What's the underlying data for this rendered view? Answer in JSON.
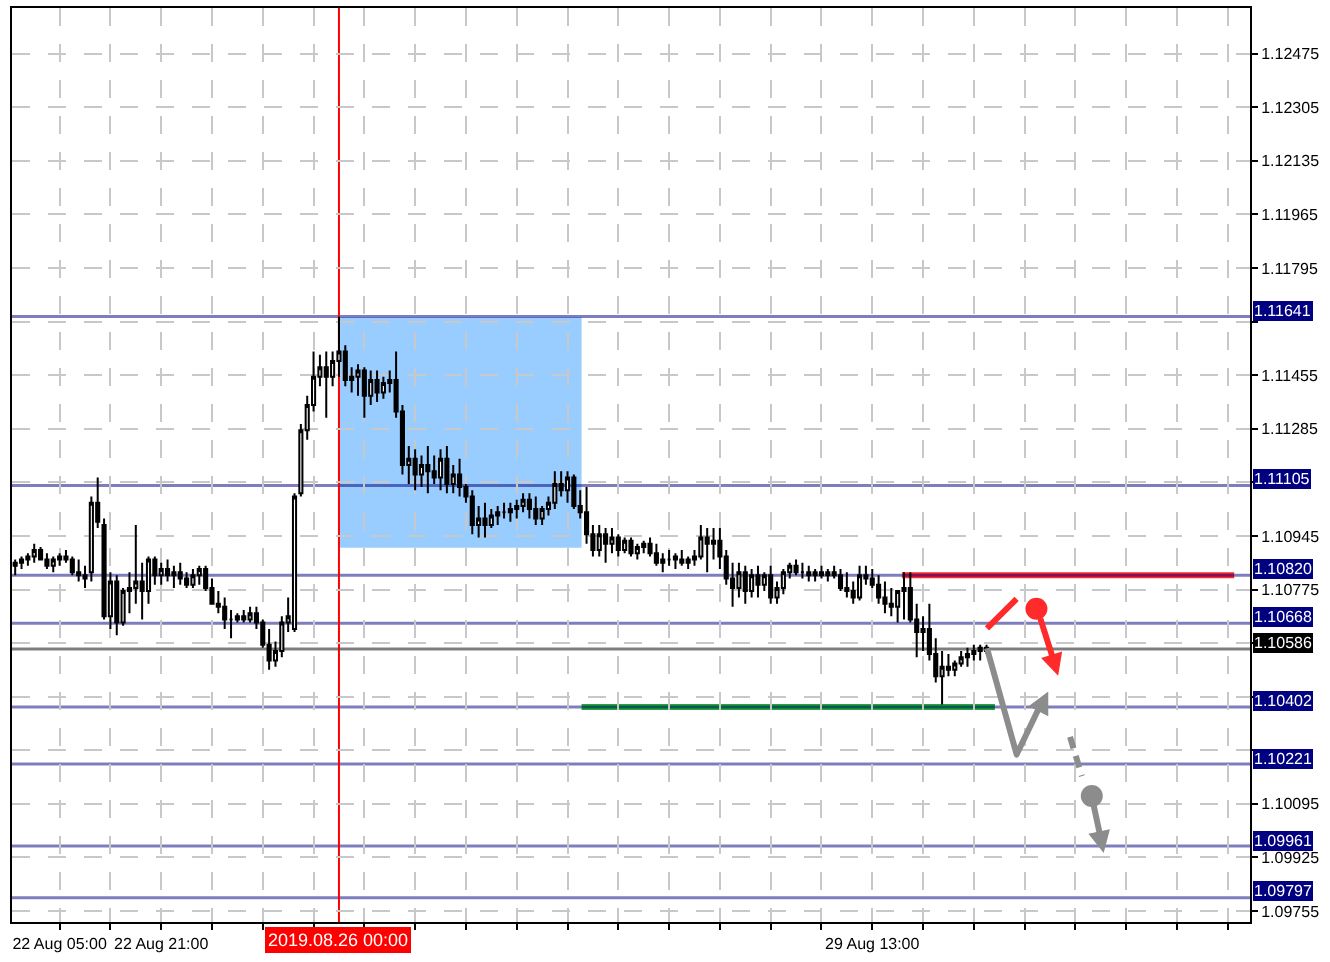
{
  "chart_data": {
    "type": "candlestick",
    "categories": [
      null,
      null,
      null,
      null,
      null,
      null,
      null,
      "22 Aug 05:00",
      null,
      null,
      null,
      null,
      null,
      null,
      null,
      null,
      null,
      null,
      null,
      null,
      null,
      null,
      null,
      "22 Aug 21:00",
      null,
      null,
      null,
      null,
      null,
      null,
      null,
      null,
      null,
      null,
      null,
      null,
      null,
      null,
      null,
      null,
      null,
      null,
      null,
      null,
      null,
      null,
      null,
      null,
      null,
      null,
      null,
      "2019.08.26 00:00",
      null,
      null,
      null,
      null,
      null,
      null,
      null,
      null,
      null,
      null,
      null,
      null,
      null,
      null,
      null,
      null,
      null,
      null,
      null,
      null,
      null,
      null,
      null,
      null,
      null,
      null,
      null,
      null,
      null,
      null,
      null,
      null,
      null,
      null,
      null,
      null,
      null,
      null,
      null,
      null,
      null,
      null,
      null,
      null,
      null,
      null,
      null,
      null,
      null,
      null,
      null,
      null,
      null,
      null,
      null,
      null,
      null,
      null,
      null,
      null,
      null,
      null,
      null,
      null,
      null,
      null,
      null,
      null,
      null,
      null,
      null,
      null,
      null,
      null,
      null,
      null,
      null,
      null,
      null,
      null,
      null,
      null,
      null,
      "29 Aug 13:00",
      null,
      null,
      null,
      null,
      null,
      null,
      null,
      null,
      null,
      null,
      null,
      null,
      null,
      null,
      null,
      null,
      null,
      null,
      null,
      null,
      null,
      null,
      null,
      null,
      null,
      null,
      null,
      null,
      null,
      null,
      null,
      null,
      null,
      null,
      null,
      null,
      null,
      null,
      null,
      null,
      null,
      null,
      null,
      null,
      null,
      null,
      null,
      null,
      null,
      null,
      null,
      null,
      null,
      null,
      null,
      null,
      null,
      null,
      null
    ],
    "ohlc": [
      [
        1.1085,
        1.1087,
        1.1082,
        1.1086
      ],
      [
        1.1086,
        1.1088,
        1.1084,
        1.1087
      ],
      [
        1.1087,
        1.1089,
        1.1085,
        1.1088
      ],
      [
        1.1088,
        1.1092,
        1.1086,
        1.109
      ],
      [
        1.109,
        1.1091,
        1.1087,
        1.1087
      ],
      [
        1.1087,
        1.1089,
        1.1084,
        1.1085
      ],
      [
        1.1085,
        1.1088,
        1.1083,
        1.1087
      ],
      [
        1.1087,
        1.1089,
        1.1085,
        1.1088
      ],
      [
        1.1088,
        1.109,
        1.1086,
        1.1087
      ],
      [
        1.1087,
        1.1088,
        1.1082,
        1.1083
      ],
      [
        1.1083,
        1.1087,
        1.108,
        1.1082
      ],
      [
        1.1082,
        1.1085,
        1.1078,
        1.1081
      ],
      [
        1.1083,
        1.1107,
        1.108,
        1.1105
      ],
      [
        1.1105,
        1.1113,
        1.1097,
        1.1099
      ],
      [
        1.1098,
        1.11,
        1.1068,
        1.1069
      ],
      [
        1.1069,
        1.1083,
        1.1065,
        1.108
      ],
      [
        1.108,
        1.1082,
        1.1063,
        1.1067
      ],
      [
        1.1067,
        1.1078,
        1.1066,
        1.1077
      ],
      [
        1.1077,
        1.1083,
        1.107,
        1.1078
      ],
      [
        1.1078,
        1.1098,
        1.1073,
        1.108
      ],
      [
        1.108,
        1.1086,
        1.1068,
        1.1077
      ],
      [
        1.1077,
        1.1088,
        1.1073,
        1.1087
      ],
      [
        1.1087,
        1.1088,
        1.1079,
        1.1082
      ],
      [
        1.1082,
        1.1086,
        1.1079,
        1.1084
      ],
      [
        1.1084,
        1.1087,
        1.108,
        1.1082
      ],
      [
        1.1082,
        1.1085,
        1.1078,
        1.1083
      ],
      [
        1.1083,
        1.1086,
        1.1079,
        1.1081
      ],
      [
        1.1081,
        1.1083,
        1.1078,
        1.1079
      ],
      [
        1.1079,
        1.1084,
        1.1078,
        1.1082
      ],
      [
        1.1082,
        1.1085,
        1.1079,
        1.1084
      ],
      [
        1.1084,
        1.1085,
        1.1077,
        1.1078
      ],
      [
        1.1078,
        1.1081,
        1.1073,
        1.1073
      ],
      [
        1.1073,
        1.1077,
        1.107,
        1.1072
      ],
      [
        1.1072,
        1.1075,
        1.1065,
        1.1068
      ],
      [
        1.1068,
        1.1071,
        1.1062,
        1.1068
      ],
      [
        1.1068,
        1.107,
        1.1067,
        1.1069
      ],
      [
        1.1069,
        1.1071,
        1.1067,
        1.1068
      ],
      [
        1.1068,
        1.1072,
        1.1067,
        1.107
      ],
      [
        1.107,
        1.1072,
        1.1065,
        1.1067
      ],
      [
        1.1067,
        1.1068,
        1.1059,
        1.106
      ],
      [
        1.106,
        1.1065,
        1.1052,
        1.1055
      ],
      [
        1.1055,
        1.1061,
        1.1053,
        1.1058
      ],
      [
        1.1058,
        1.1069,
        1.1056,
        1.1067
      ],
      [
        1.1067,
        1.1075,
        1.1064,
        1.1069
      ],
      [
        1.1065,
        1.1108,
        1.1064,
        1.1107
      ],
      [
        1.1108,
        1.113,
        1.1107,
        1.1128
      ],
      [
        1.1128,
        1.1139,
        1.1125,
        1.1136
      ],
      [
        1.1136,
        1.1153,
        1.1134,
        1.1145
      ],
      [
        1.1145,
        1.1152,
        1.1142,
        1.1148
      ],
      [
        1.1148,
        1.1153,
        1.1132,
        1.1145
      ],
      [
        1.1145,
        1.1153,
        1.1142,
        1.115
      ],
      [
        1.115,
        1.1164,
        1.1145,
        1.1153
      ],
      [
        1.1153,
        1.1155,
        1.1142,
        1.1144
      ],
      [
        1.1144,
        1.1148,
        1.114,
        1.1145
      ],
      [
        1.1145,
        1.1149,
        1.1139,
        1.1147
      ],
      [
        1.1147,
        1.1148,
        1.1132,
        1.1139
      ],
      [
        1.1139,
        1.1147,
        1.1136,
        1.1144
      ],
      [
        1.1144,
        1.1147,
        1.1137,
        1.114
      ],
      [
        1.114,
        1.1145,
        1.1138,
        1.1143
      ],
      [
        1.1143,
        1.1147,
        1.114,
        1.1144
      ],
      [
        1.1144,
        1.1153,
        1.1132,
        1.1134
      ],
      [
        1.1134,
        1.1136,
        1.1114,
        1.1117
      ],
      [
        1.1117,
        1.1123,
        1.1111,
        1.1119
      ],
      [
        1.1119,
        1.1122,
        1.1109,
        1.1114
      ],
      [
        1.1114,
        1.112,
        1.111,
        1.1117
      ],
      [
        1.1117,
        1.1123,
        1.1108,
        1.1115
      ],
      [
        1.1115,
        1.112,
        1.1111,
        1.1113
      ],
      [
        1.1113,
        1.1122,
        1.1109,
        1.1119
      ],
      [
        1.1119,
        1.1123,
        1.1108,
        1.1111
      ],
      [
        1.1111,
        1.1117,
        1.1108,
        1.1114
      ],
      [
        1.1114,
        1.1119,
        1.1107,
        1.111
      ],
      [
        1.111,
        1.1111,
        1.1105,
        1.1107
      ],
      [
        1.1107,
        1.1109,
        1.1095,
        1.1098
      ],
      [
        1.1098,
        1.1104,
        1.1094,
        1.11
      ],
      [
        1.11,
        1.1105,
        1.1094,
        1.1098
      ],
      [
        1.1098,
        1.1103,
        1.1097,
        1.1101
      ],
      [
        1.1101,
        1.1104,
        1.1098,
        1.1102
      ],
      [
        1.1102,
        1.1105,
        1.11,
        1.1102
      ],
      [
        1.1102,
        1.1105,
        1.1099,
        1.1103
      ],
      [
        1.1103,
        1.1106,
        1.11,
        1.1104
      ],
      [
        1.1104,
        1.1108,
        1.1102,
        1.1106
      ],
      [
        1.1106,
        1.1108,
        1.11,
        1.1103
      ],
      [
        1.1103,
        1.1107,
        1.1098,
        1.11
      ],
      [
        1.11,
        1.1104,
        1.1098,
        1.1103
      ],
      [
        1.1103,
        1.1107,
        1.1101,
        1.1105
      ],
      [
        1.1105,
        1.1115,
        1.1103,
        1.1111
      ],
      [
        1.1111,
        1.1115,
        1.1107,
        1.1109
      ],
      [
        1.1109,
        1.1115,
        1.1105,
        1.1113
      ],
      [
        1.1113,
        1.1114,
        1.1103,
        1.1104
      ],
      [
        1.1104,
        1.1109,
        1.11,
        1.1102
      ],
      [
        1.1102,
        1.111,
        1.1092,
        1.1095
      ],
      [
        1.1095,
        1.1098,
        1.1088,
        1.109
      ],
      [
        1.109,
        1.1098,
        1.1088,
        1.1095
      ],
      [
        1.1095,
        1.1097,
        1.1086,
        1.1092
      ],
      [
        1.1092,
        1.1097,
        1.1089,
        1.1094
      ],
      [
        1.1094,
        1.1095,
        1.1088,
        1.109
      ],
      [
        1.109,
        1.1094,
        1.1089,
        1.1093
      ],
      [
        1.1093,
        1.1094,
        1.1088,
        1.1089
      ],
      [
        1.1089,
        1.1092,
        1.1087,
        1.1091
      ],
      [
        1.1091,
        1.1093,
        1.1089,
        1.1092
      ],
      [
        1.1092,
        1.1094,
        1.1088,
        1.1089
      ],
      [
        1.1089,
        1.1092,
        1.1085,
        1.1086
      ],
      [
        1.1086,
        1.1089,
        1.1083,
        1.1087
      ],
      [
        1.1087,
        1.109,
        1.1085,
        1.1087
      ],
      [
        1.1087,
        1.1089,
        1.1084,
        1.1088
      ],
      [
        1.1087,
        1.109,
        1.1085,
        1.1086
      ],
      [
        1.1086,
        1.1088,
        1.1084,
        1.1087
      ],
      [
        1.1087,
        1.109,
        1.1085,
        1.1088
      ],
      [
        1.1088,
        1.1098,
        1.1087,
        1.1094
      ],
      [
        1.1094,
        1.1097,
        1.1083,
        1.1092
      ],
      [
        1.1092,
        1.1097,
        1.1087,
        1.1093
      ],
      [
        1.1093,
        1.1097,
        1.1084,
        1.1088
      ],
      [
        1.1088,
        1.109,
        1.1079,
        1.1081
      ],
      [
        1.1081,
        1.1086,
        1.1072,
        1.1078
      ],
      [
        1.1078,
        1.1086,
        1.1075,
        1.1083
      ],
      [
        1.1083,
        1.1085,
        1.1073,
        1.1077
      ],
      [
        1.1077,
        1.1084,
        1.1075,
        1.1082
      ],
      [
        1.1082,
        1.1085,
        1.1075,
        1.1079
      ],
      [
        1.1079,
        1.1083,
        1.1077,
        1.1082
      ],
      [
        1.1082,
        1.1085,
        1.1073,
        1.1075
      ],
      [
        1.1075,
        1.108,
        1.1073,
        1.1078
      ],
      [
        1.1078,
        1.1084,
        1.1076,
        1.1083
      ],
      [
        1.1083,
        1.1086,
        1.1081,
        1.1085
      ],
      [
        1.1085,
        1.1087,
        1.1082,
        1.1083
      ],
      [
        1.1083,
        1.1086,
        1.1081,
        1.1083
      ],
      [
        1.1083,
        1.1085,
        1.108,
        1.1082
      ],
      [
        1.1082,
        1.1084,
        1.108,
        1.1083
      ],
      [
        1.1083,
        1.1085,
        1.1081,
        1.1082
      ],
      [
        1.1082,
        1.1084,
        1.108,
        1.1083
      ],
      [
        1.1083,
        1.1085,
        1.1081,
        1.1082
      ],
      [
        1.1082,
        1.1084,
        1.1077,
        1.1078
      ],
      [
        1.1078,
        1.1083,
        1.1075,
        1.1077
      ],
      [
        1.1077,
        1.108,
        1.1073,
        1.1075
      ],
      [
        1.1075,
        1.1085,
        1.1074,
        1.1082
      ],
      [
        1.1082,
        1.1085,
        1.1079,
        1.1081
      ],
      [
        1.1081,
        1.1084,
        1.1078,
        1.1079
      ],
      [
        1.1079,
        1.1082,
        1.1073,
        1.1075
      ],
      [
        1.1075,
        1.108,
        1.107,
        1.1073
      ],
      [
        1.1073,
        1.1078,
        1.1069,
        1.1072
      ],
      [
        1.1072,
        1.1077,
        1.1067,
        1.1077
      ],
      [
        1.1077,
        1.1083,
        1.1068,
        1.1078
      ],
      [
        1.1078,
        1.1083,
        1.1067,
        1.1068
      ],
      [
        1.1068,
        1.1073,
        1.1056,
        1.1064
      ],
      [
        1.1064,
        1.1069,
        1.1058,
        1.1065
      ],
      [
        1.1065,
        1.1073,
        1.1055,
        1.1057
      ],
      [
        1.1057,
        1.1062,
        1.1048,
        1.105
      ],
      [
        1.105,
        1.1058,
        1.1041,
        1.1053
      ],
      [
        1.1053,
        1.1057,
        1.105,
        1.1052
      ],
      [
        1.1052,
        1.1055,
        1.105,
        1.1054
      ],
      [
        1.1054,
        1.1058,
        1.1053,
        1.1056
      ],
      [
        1.1056,
        1.1059,
        1.1053,
        1.1057
      ],
      [
        1.1057,
        1.106,
        1.1055,
        1.1058
      ],
      [
        1.1058,
        1.106,
        1.1055,
        1.1059
      ],
      [
        1.1059,
        1.106,
        1.1057,
        1.1058
      ],
      null,
      null,
      null,
      null,
      null,
      null,
      null,
      null,
      null,
      null,
      null,
      null,
      null,
      null,
      null,
      null,
      null,
      null,
      null,
      null,
      null,
      null,
      null,
      null,
      null,
      null,
      null,
      null,
      null,
      null,
      null,
      null,
      null,
      null,
      null,
      null,
      null,
      null,
      null,
      null,
      null
    ],
    "ylim": [
      1.0972,
      1.1262
    ],
    "yticks": [
      1.09755,
      1.09925,
      1.10095,
      {
        "value": 1.10265,
        "label": null
      },
      {
        "value": 1.10435,
        "label": null
      },
      {
        "value": 1.10605,
        "label": null
      },
      1.10775,
      1.10945,
      {
        "value": 1.11115,
        "label": null
      },
      1.11285,
      1.11455,
      {
        "value": 1.11625,
        "label": null
      },
      1.11795,
      1.11965,
      1.12135,
      1.12305,
      1.12475
    ],
    "grid": true,
    "ref_lines": [
      {
        "axis": "y",
        "value": 1.11641,
        "label": "1.11641",
        "color": "#000080"
      },
      {
        "axis": "y",
        "value": 1.11105,
        "label": "1.11105",
        "color": "#000080"
      },
      {
        "axis": "y",
        "value": 1.1082,
        "label": "1.10820",
        "color": "#000080"
      },
      {
        "axis": "y",
        "value": 1.10668,
        "label": "1.10668",
        "color": "#000080"
      },
      {
        "axis": "y",
        "value": 1.10586,
        "label": "1.10586",
        "color": "#000000"
      },
      {
        "axis": "y",
        "value": 1.10402,
        "label": "1.10402",
        "color": "#000080"
      },
      {
        "axis": "y",
        "value": 1.10221,
        "label": "1.10221",
        "color": "#000080"
      },
      {
        "axis": "y",
        "value": 1.09961,
        "label": "1.09961",
        "color": "#000080"
      },
      {
        "axis": "y",
        "value": 1.09797,
        "label": "1.09797",
        "color": "#000080"
      },
      {
        "axis": "x",
        "value": "2019.08.26 00:00",
        "color": "#ff0000"
      }
    ]
  }
}
